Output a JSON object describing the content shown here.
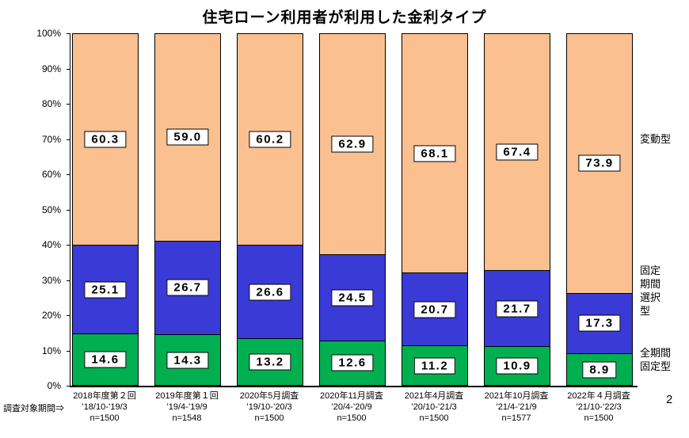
{
  "title": "住宅ローン利用者が利用した金利タイプ",
  "page_number": "2",
  "survey_period_label": "調査対象期間⇒",
  "y_axis": {
    "ticks": [
      "100%",
      "90%",
      "80%",
      "70%",
      "60%",
      "50%",
      "40%",
      "30%",
      "20%",
      "10%",
      "0%"
    ]
  },
  "chart_data": {
    "type": "bar",
    "stacked": true,
    "percent_stacked": true,
    "title": "住宅ローン利用者が利用した金利タイプ",
    "ylim": [
      0,
      100
    ],
    "grid": false,
    "legend_position": "right",
    "categories": [
      {
        "name": "2018年度第２回",
        "period": "’18/10-’19/3",
        "n": "n=1500"
      },
      {
        "name": "2019年度第１回",
        "period": "’19/4-’19/9",
        "n": "n=1548"
      },
      {
        "name": "2020年5月調査",
        "period": "’19/10-’20/3",
        "n": "n=1500"
      },
      {
        "name": "2020年11月調査",
        "period": "’20/4-’20/9",
        "n": "n=1500"
      },
      {
        "name": "2021年4月調査",
        "period": "’20/10-’21/3",
        "n": "n=1500"
      },
      {
        "name": "2021年10月調査",
        "period": "’21/4-’21/9",
        "n": "n=1577"
      },
      {
        "name": "2022年４月調査",
        "period": "’21/10-’22/3",
        "n": "n=1500"
      }
    ],
    "series": [
      {
        "name": "全期間固定型",
        "color": "#00B050",
        "values": [
          14.6,
          14.3,
          13.2,
          12.6,
          11.2,
          10.9,
          8.9
        ]
      },
      {
        "name": "固定期間選択型",
        "color": "#3A3AD6",
        "values": [
          25.1,
          26.7,
          26.6,
          24.5,
          20.7,
          21.7,
          17.3
        ]
      },
      {
        "name": "変動型",
        "color": "#FAC090",
        "values": [
          60.3,
          59.0,
          60.2,
          62.9,
          68.1,
          67.4,
          73.9
        ]
      }
    ],
    "right_labels": [
      {
        "series": "変動型",
        "lines": [
          "変動型"
        ],
        "center_pct": 70
      },
      {
        "series": "固定期間選択型",
        "lines": [
          "固定",
          "期間",
          "選択",
          "型"
        ],
        "center_pct": 27
      },
      {
        "series": "全期間固定型",
        "lines": [
          "全期間",
          "固定型"
        ],
        "center_pct": 7.5
      }
    ]
  }
}
